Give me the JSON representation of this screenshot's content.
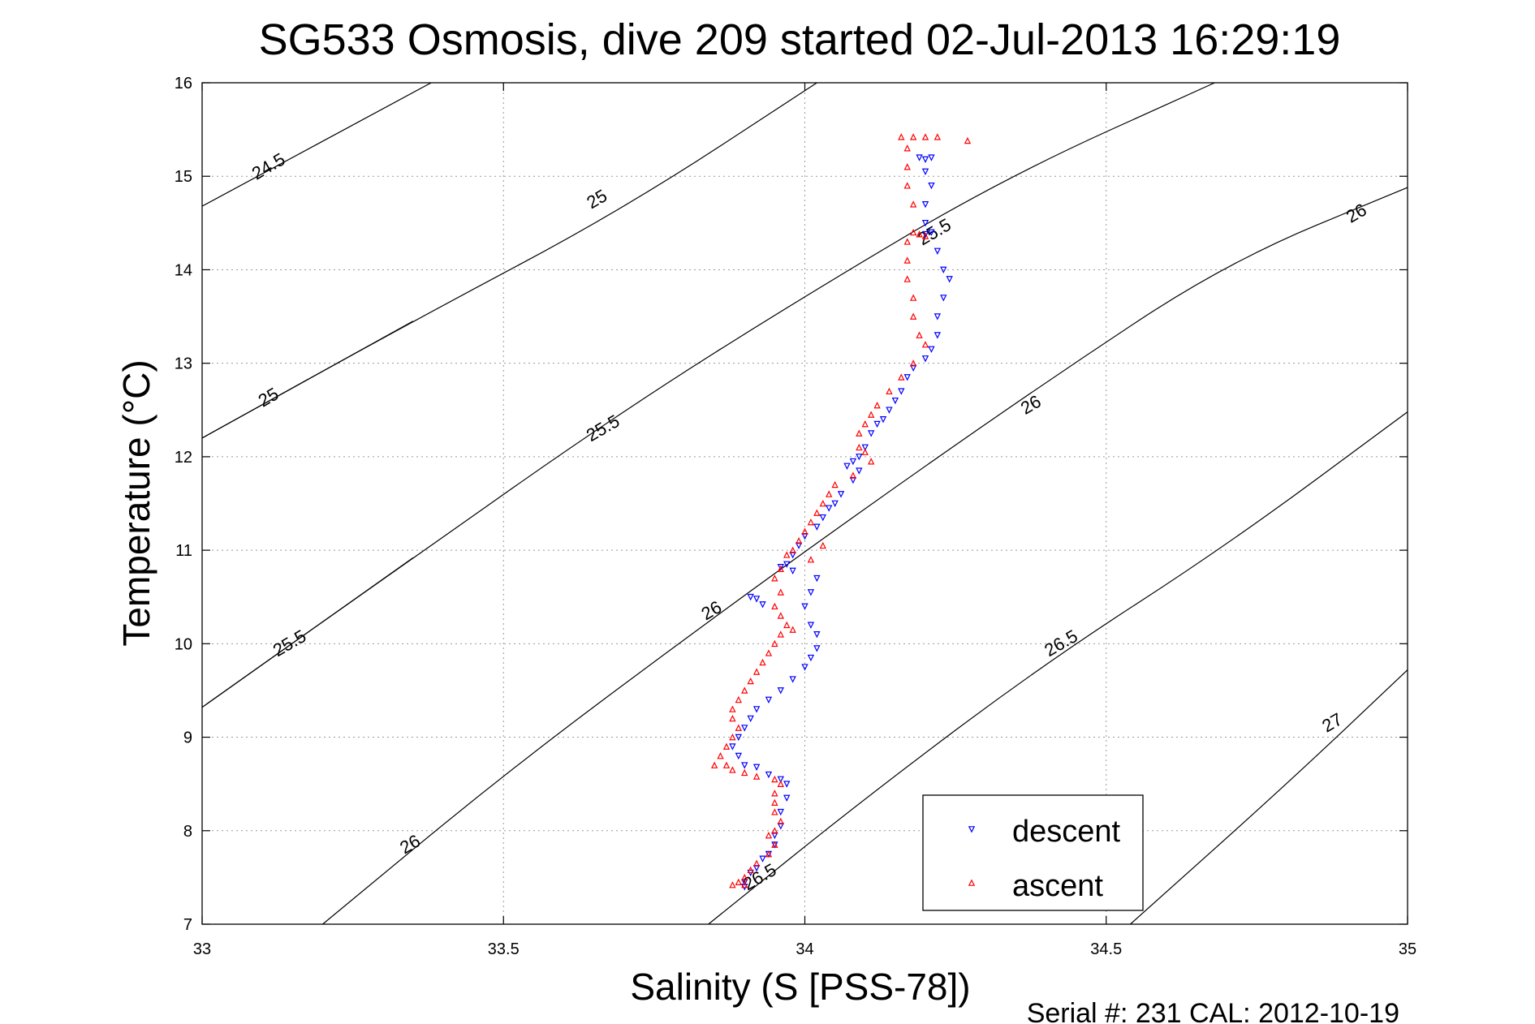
{
  "chart_data": {
    "type": "scatter",
    "title": "SG533 Osmosis, dive 209 started 02-Jul-2013 16:29:19",
    "xlabel": "Salinity (S [PSS-78])",
    "ylabel": "Temperature (°C)",
    "xlim": [
      33,
      35
    ],
    "ylim": [
      7,
      16
    ],
    "x_ticks": [
      "33",
      "33.5",
      "34",
      "34.5",
      "35"
    ],
    "y_ticks": [
      "7",
      "8",
      "9",
      "10",
      "11",
      "12",
      "13",
      "14",
      "15",
      "16"
    ],
    "grid": true,
    "legend_position": "bottom-right",
    "footer": "Serial #: 231  CAL: 2012-10-19",
    "density_contours": [
      {
        "label": "24.5",
        "points": [
          [
            33,
            14.68
          ],
          [
            33.38,
            16
          ]
        ],
        "label_at": [
          33.115,
          15.05
        ]
      },
      {
        "label": "25",
        "points": [
          [
            33,
            12.2
          ],
          [
            33.35,
            13.45
          ],
          [
            33.7,
            14.65
          ],
          [
            34.02,
            16
          ]
        ],
        "label_at": [
          33.66,
          14.7
        ]
      },
      {
        "label": "25",
        "points": [
          [
            33,
            12.2
          ],
          [
            33.35,
            13.45
          ]
        ],
        "label_at": [
          33.115,
          12.58
        ]
      },
      {
        "label": "25.5",
        "points": [
          [
            33,
            9.32
          ],
          [
            33.35,
            10.92
          ],
          [
            33.7,
            12.5
          ],
          [
            34,
            13.72
          ],
          [
            34.33,
            14.98
          ],
          [
            34.68,
            16
          ]
        ],
        "label_at": [
          33.67,
          12.25
        ]
      },
      {
        "label": "25.5",
        "points": [
          [
            33,
            9.32
          ],
          [
            33.35,
            10.92
          ]
        ],
        "label_at": [
          33.15,
          9.95
        ]
      },
      {
        "label": "25.5",
        "points": [
          [
            34.33,
            14.98
          ]
        ],
        "label_at": [
          34.22,
          14.35
        ]
      },
      {
        "label": "26",
        "points": [
          [
            33.2,
            7
          ],
          [
            33.5,
            8.6
          ],
          [
            33.8,
            10.05
          ],
          [
            34.1,
            11.45
          ],
          [
            34.4,
            12.8
          ],
          [
            34.7,
            14.08
          ],
          [
            35,
            14.88
          ]
        ],
        "label_at": [
          33.35,
          7.8
        ]
      },
      {
        "label": "26",
        "points": [
          [
            33.8,
            10.05
          ]
        ],
        "label_at": [
          33.85,
          10.3
        ]
      },
      {
        "label": "26",
        "points": [
          [
            34.4,
            12.8
          ]
        ],
        "label_at": [
          34.38,
          12.5
        ]
      },
      {
        "label": "26",
        "points": [
          [
            35,
            14.88
          ]
        ],
        "label_at": [
          34.92,
          14.55
        ]
      },
      {
        "label": "26.5",
        "points": [
          [
            33.84,
            7
          ],
          [
            34.1,
            8.35
          ],
          [
            34.4,
            9.8
          ],
          [
            34.7,
            11.05
          ],
          [
            35,
            12.48
          ]
        ],
        "label_at": [
          34.43,
          9.95
        ]
      },
      {
        "label": "26.5",
        "points": [
          [
            33.84,
            7
          ]
        ],
        "label_at": [
          33.93,
          7.45
        ]
      },
      {
        "label": "27",
        "points": [
          [
            34.54,
            7
          ],
          [
            34.8,
            8.5
          ],
          [
            35,
            9.72
          ]
        ],
        "label_at": [
          34.88,
          9.1
        ]
      }
    ],
    "series": [
      {
        "name": "descent",
        "color": "#0000ff",
        "marker": "triangle-down",
        "points": [
          [
            34.19,
            15.2
          ],
          [
            34.2,
            15.18
          ],
          [
            34.21,
            15.2
          ],
          [
            34.2,
            15.05
          ],
          [
            34.21,
            14.9
          ],
          [
            34.2,
            14.7
          ],
          [
            34.2,
            14.5
          ],
          [
            34.21,
            14.4
          ],
          [
            34.2,
            14.38
          ],
          [
            34.22,
            14.2
          ],
          [
            34.23,
            14.0
          ],
          [
            34.24,
            13.9
          ],
          [
            34.23,
            13.7
          ],
          [
            34.22,
            13.5
          ],
          [
            34.22,
            13.3
          ],
          [
            34.21,
            13.15
          ],
          [
            34.2,
            13.05
          ],
          [
            34.18,
            12.95
          ],
          [
            34.17,
            12.85
          ],
          [
            34.16,
            12.7
          ],
          [
            34.15,
            12.6
          ],
          [
            34.14,
            12.5
          ],
          [
            34.13,
            12.4
          ],
          [
            34.12,
            12.35
          ],
          [
            34.11,
            12.25
          ],
          [
            34.1,
            12.1
          ],
          [
            34.09,
            12.0
          ],
          [
            34.08,
            11.95
          ],
          [
            34.07,
            11.9
          ],
          [
            34.09,
            11.85
          ],
          [
            34.08,
            11.75
          ],
          [
            34.06,
            11.6
          ],
          [
            34.05,
            11.5
          ],
          [
            34.04,
            11.45
          ],
          [
            34.03,
            11.35
          ],
          [
            34.02,
            11.25
          ],
          [
            34.0,
            11.15
          ],
          [
            33.99,
            11.05
          ],
          [
            33.98,
            10.95
          ],
          [
            33.97,
            10.85
          ],
          [
            33.96,
            10.82
          ],
          [
            33.98,
            10.78
          ],
          [
            34.02,
            10.7
          ],
          [
            34.01,
            10.55
          ],
          [
            34.0,
            10.4
          ],
          [
            34.01,
            10.2
          ],
          [
            34.02,
            10.1
          ],
          [
            34.02,
            9.95
          ],
          [
            34.01,
            9.85
          ],
          [
            34.0,
            9.75
          ],
          [
            33.98,
            9.62
          ],
          [
            33.96,
            9.5
          ],
          [
            33.94,
            9.4
          ],
          [
            33.92,
            9.3
          ],
          [
            33.91,
            9.2
          ],
          [
            33.9,
            9.1
          ],
          [
            33.89,
            9.0
          ],
          [
            33.88,
            8.9
          ],
          [
            33.89,
            8.8
          ],
          [
            33.9,
            8.7
          ],
          [
            33.92,
            8.68
          ],
          [
            33.94,
            8.6
          ],
          [
            33.96,
            8.55
          ],
          [
            33.97,
            8.5
          ],
          [
            33.97,
            8.35
          ],
          [
            33.96,
            8.2
          ],
          [
            33.96,
            8.05
          ],
          [
            33.95,
            7.95
          ],
          [
            33.95,
            7.85
          ],
          [
            33.94,
            7.75
          ],
          [
            33.93,
            7.7
          ],
          [
            33.92,
            7.6
          ],
          [
            33.91,
            7.55
          ],
          [
            33.9,
            7.45
          ],
          [
            33.9,
            7.4
          ],
          [
            33.93,
            10.42
          ],
          [
            33.92,
            10.48
          ],
          [
            33.91,
            10.5
          ]
        ]
      },
      {
        "name": "ascent",
        "color": "#ff0000",
        "marker": "triangle-up",
        "points": [
          [
            34.16,
            15.42
          ],
          [
            34.18,
            15.42
          ],
          [
            34.2,
            15.42
          ],
          [
            34.22,
            15.42
          ],
          [
            34.27,
            15.38
          ],
          [
            34.17,
            15.3
          ],
          [
            34.17,
            15.1
          ],
          [
            34.17,
            14.9
          ],
          [
            34.18,
            14.7
          ],
          [
            34.18,
            14.4
          ],
          [
            34.19,
            14.38
          ],
          [
            34.2,
            14.36
          ],
          [
            34.17,
            14.3
          ],
          [
            34.17,
            14.1
          ],
          [
            34.17,
            13.9
          ],
          [
            34.18,
            13.7
          ],
          [
            34.18,
            13.5
          ],
          [
            34.19,
            13.3
          ],
          [
            34.2,
            13.2
          ],
          [
            34.18,
            13.0
          ],
          [
            34.16,
            12.85
          ],
          [
            34.14,
            12.7
          ],
          [
            34.12,
            12.55
          ],
          [
            34.11,
            12.45
          ],
          [
            34.1,
            12.35
          ],
          [
            34.09,
            12.25
          ],
          [
            34.09,
            12.1
          ],
          [
            34.1,
            12.05
          ],
          [
            34.11,
            11.95
          ],
          [
            34.08,
            11.8
          ],
          [
            34.05,
            11.7
          ],
          [
            34.04,
            11.6
          ],
          [
            34.03,
            11.5
          ],
          [
            34.02,
            11.4
          ],
          [
            34.01,
            11.3
          ],
          [
            34.0,
            11.2
          ],
          [
            33.99,
            11.1
          ],
          [
            33.98,
            11.0
          ],
          [
            33.97,
            10.95
          ],
          [
            34.03,
            11.05
          ],
          [
            34.01,
            10.9
          ],
          [
            33.96,
            10.8
          ],
          [
            33.95,
            10.7
          ],
          [
            33.96,
            10.55
          ],
          [
            33.95,
            10.4
          ],
          [
            33.96,
            10.3
          ],
          [
            33.97,
            10.2
          ],
          [
            33.98,
            10.15
          ],
          [
            33.96,
            10.1
          ],
          [
            33.95,
            10.0
          ],
          [
            33.94,
            9.9
          ],
          [
            33.93,
            9.8
          ],
          [
            33.92,
            9.7
          ],
          [
            33.91,
            9.6
          ],
          [
            33.9,
            9.5
          ],
          [
            33.89,
            9.4
          ],
          [
            33.88,
            9.3
          ],
          [
            33.88,
            9.2
          ],
          [
            33.89,
            9.1
          ],
          [
            33.88,
            9.0
          ],
          [
            33.87,
            8.9
          ],
          [
            33.86,
            8.8
          ],
          [
            33.87,
            8.7
          ],
          [
            33.85,
            8.7
          ],
          [
            33.88,
            8.65
          ],
          [
            33.9,
            8.62
          ],
          [
            33.92,
            8.58
          ],
          [
            33.95,
            8.55
          ],
          [
            33.96,
            8.5
          ],
          [
            33.95,
            8.4
          ],
          [
            33.95,
            8.3
          ],
          [
            33.95,
            8.2
          ],
          [
            33.96,
            8.1
          ],
          [
            33.95,
            8.0
          ],
          [
            33.94,
            7.95
          ],
          [
            33.95,
            7.85
          ],
          [
            33.94,
            7.75
          ],
          [
            33.92,
            7.65
          ],
          [
            33.91,
            7.58
          ],
          [
            33.9,
            7.5
          ],
          [
            33.89,
            7.45
          ],
          [
            33.9,
            7.42
          ],
          [
            33.88,
            7.42
          ]
        ]
      }
    ]
  }
}
